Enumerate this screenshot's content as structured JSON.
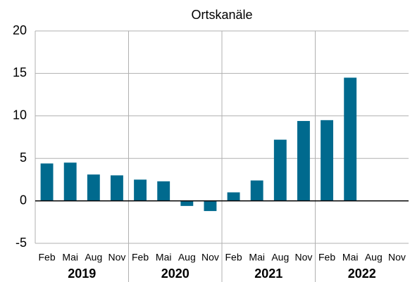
{
  "chart_data": {
    "type": "bar",
    "title": "Ortskanäle",
    "categories": [
      "Feb",
      "Mai",
      "Aug",
      "Nov",
      "Feb",
      "Mai",
      "Aug",
      "Nov",
      "Feb",
      "Mai",
      "Aug",
      "Nov",
      "Feb",
      "Mai",
      "Aug",
      "Nov"
    ],
    "groups": [
      "2019",
      "2020",
      "2021",
      "2022"
    ],
    "values": [
      4.4,
      4.5,
      3.1,
      3.0,
      2.5,
      2.3,
      -0.6,
      -1.2,
      1.0,
      2.4,
      7.2,
      9.4,
      9.5,
      14.5,
      null,
      null
    ],
    "color": "#006a8e",
    "ylim": [
      -5,
      20
    ],
    "yticks": [
      -5,
      0,
      5,
      10,
      15,
      20
    ],
    "grid": true
  }
}
